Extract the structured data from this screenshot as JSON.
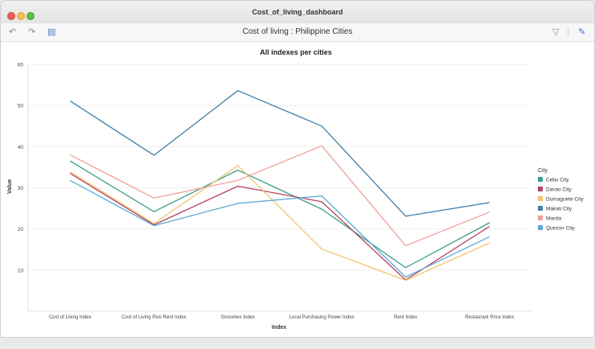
{
  "window": {
    "title": "Cost_of_living_dashboard"
  },
  "toolbar": {
    "title": "Cost of living : Philippine Cities",
    "undo_icon": "undo-icon",
    "redo_icon": "redo-icon",
    "page_icon": "page-icon",
    "filter_icon": "filter-icon",
    "edit_icon": "edit-icon"
  },
  "chart_data": {
    "type": "line",
    "title": "All indexes per cities",
    "xlabel": "Index",
    "ylabel": "Value",
    "ylim": [
      0,
      60
    ],
    "yticks": [
      10,
      20,
      30,
      40,
      50,
      60
    ],
    "grid": true,
    "legend_title": "City",
    "legend_position": "right",
    "categories": [
      "Cost of Living Index",
      "Cost of Living Plus Rent Index",
      "Groceries Index",
      "Local Purchasing Power Index",
      "Rent Index",
      "Restaurant Price Index"
    ],
    "series": [
      {
        "name": "Cebu City",
        "color": "#3a9e8c",
        "values": [
          36.5,
          24.2,
          34.3,
          24.8,
          10.6,
          21.5
        ]
      },
      {
        "name": "Davao City",
        "color": "#b5435e",
        "values": [
          33.5,
          21.0,
          30.4,
          26.6,
          7.6,
          20.6
        ]
      },
      {
        "name": "Dumaguete City",
        "color": "#f2c46d",
        "values": [
          33.9,
          21.3,
          35.4,
          15.1,
          7.5,
          16.6
        ]
      },
      {
        "name": "Makati City",
        "color": "#3f7fa6",
        "values": [
          51.1,
          37.9,
          53.6,
          45.0,
          23.1,
          26.4
        ]
      },
      {
        "name": "Manila",
        "color": "#f0a09c",
        "values": [
          38.0,
          27.5,
          31.8,
          40.2,
          15.9,
          24.1
        ]
      },
      {
        "name": "Quezon City",
        "color": "#5aa9d6",
        "values": [
          31.8,
          20.8,
          26.2,
          28.0,
          8.3,
          18.1
        ]
      }
    ]
  }
}
